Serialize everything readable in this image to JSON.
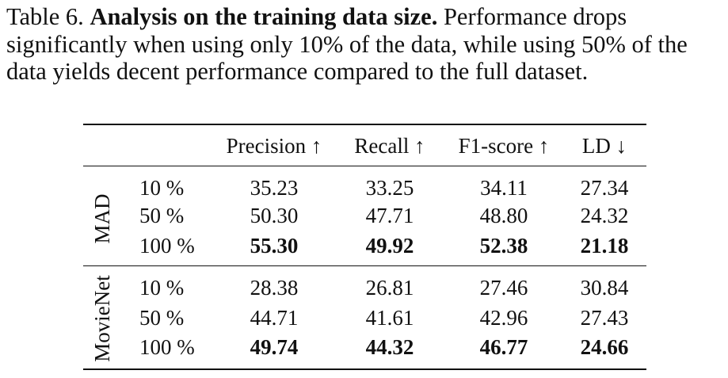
{
  "caption": {
    "label": "Table 6.",
    "title": "Analysis on the training data size.",
    "text": "Performance drops significantly when using only 10% of the data, while using 50% of the data yields decent performance compared to the full dataset."
  },
  "table": {
    "headers": [
      "Precision ↑",
      "Recall ↑",
      "F1-score ↑",
      "LD ↓"
    ],
    "groups": [
      {
        "name": "MAD",
        "rows": [
          {
            "size": "10 %",
            "values": [
              "35.23",
              "33.25",
              "34.11",
              "27.34"
            ]
          },
          {
            "size": "50 %",
            "values": [
              "50.30",
              "47.71",
              "48.80",
              "24.32"
            ]
          },
          {
            "size": "100 %",
            "values": [
              "55.30",
              "49.92",
              "52.38",
              "21.18"
            ]
          }
        ]
      },
      {
        "name": "MovieNet",
        "rows": [
          {
            "size": "10 %",
            "values": [
              "28.38",
              "26.81",
              "27.46",
              "30.84"
            ]
          },
          {
            "size": "50 %",
            "values": [
              "44.71",
              "41.61",
              "42.96",
              "27.43"
            ]
          },
          {
            "size": "100 %",
            "values": [
              "49.74",
              "44.32",
              "46.77",
              "24.66"
            ]
          }
        ]
      }
    ]
  }
}
